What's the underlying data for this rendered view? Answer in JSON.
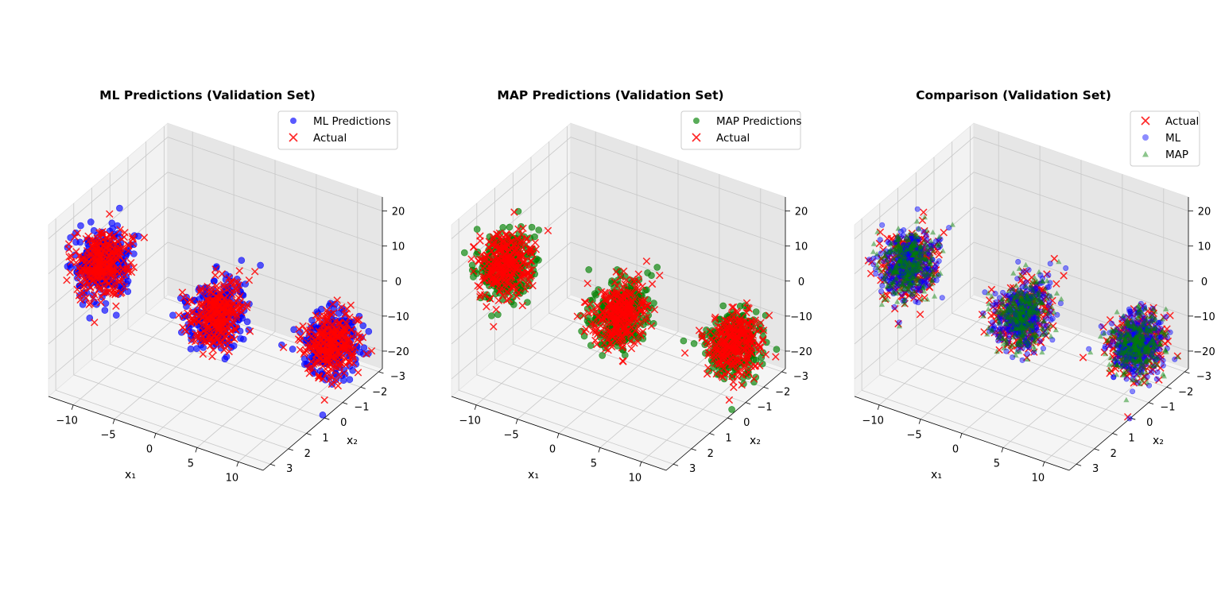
{
  "colors": {
    "ml": "#0000ff",
    "map": "#008000",
    "actual": "#ff0000",
    "pane_left": "#f2f2f2",
    "pane_right": "#e6e6e6",
    "pane_floor": "#f5f5f5",
    "grid": "#c8c8c8"
  },
  "chart_data": [
    {
      "type": "scatter",
      "projection": "3d",
      "title": "ML Predictions (Validation Set)",
      "xlabel": "x₁",
      "ylabel": "x₂",
      "zlabel": "",
      "xlim": [
        -13,
        13
      ],
      "ylim": [
        -3.2,
        3.4
      ],
      "zlim": [
        -25,
        24
      ],
      "xticks": [
        "−10",
        "−5",
        "0",
        "5",
        "10"
      ],
      "yticks": [
        "−3",
        "−2",
        "−1",
        "0",
        "1",
        "2",
        "3"
      ],
      "zticks": [
        "−20",
        "−10",
        "0",
        "10",
        "20"
      ],
      "grid": true,
      "legend": "top-right",
      "clusters": [
        {
          "x": -10,
          "y": 1.8,
          "z": 8,
          "sx": 1.2,
          "sy": 0.45,
          "sz": 4,
          "n": 300
        },
        {
          "x": 0,
          "y": 0,
          "z": -6,
          "sx": 1.2,
          "sy": 0.45,
          "sz": 4,
          "n": 300
        },
        {
          "x": 10,
          "y": -1.8,
          "z": -14,
          "sx": 1.2,
          "sy": 0.45,
          "sz": 4,
          "n": 300
        }
      ],
      "series": [
        {
          "name": "ML Predictions",
          "marker": "circle",
          "color": "#0000ff",
          "alpha": 0.65,
          "noise": 1.25
        },
        {
          "name": "Actual",
          "marker": "x",
          "color": "#ff0000",
          "alpha": 0.85,
          "noise": 1.0
        }
      ]
    },
    {
      "type": "scatter",
      "projection": "3d",
      "title": "MAP Predictions (Validation Set)",
      "xlabel": "x₁",
      "ylabel": "x₂",
      "zlabel": "",
      "xlim": [
        -13,
        13
      ],
      "ylim": [
        -3.2,
        3.4
      ],
      "zlim": [
        -25,
        24
      ],
      "xticks": [
        "−10",
        "−5",
        "0",
        "5",
        "10"
      ],
      "yticks": [
        "−3",
        "−2",
        "−1",
        "0",
        "1",
        "2",
        "3"
      ],
      "zticks": [
        "−20",
        "−10",
        "0",
        "10",
        "20"
      ],
      "grid": true,
      "legend": "top-right",
      "clusters": [
        {
          "x": -10,
          "y": 1.8,
          "z": 8,
          "sx": 1.2,
          "sy": 0.45,
          "sz": 4,
          "n": 300
        },
        {
          "x": 0,
          "y": 0,
          "z": -6,
          "sx": 1.2,
          "sy": 0.45,
          "sz": 4,
          "n": 300
        },
        {
          "x": 10,
          "y": -1.8,
          "z": -14,
          "sx": 1.2,
          "sy": 0.45,
          "sz": 4,
          "n": 300
        }
      ],
      "series": [
        {
          "name": "MAP Predictions",
          "marker": "circle",
          "color": "#008000",
          "alpha": 0.65,
          "noise": 1.25
        },
        {
          "name": "Actual",
          "marker": "x",
          "color": "#ff0000",
          "alpha": 0.85,
          "noise": 1.0
        }
      ]
    },
    {
      "type": "scatter",
      "projection": "3d",
      "title": "Comparison (Validation Set)",
      "xlabel": "x₁",
      "ylabel": "x₂",
      "zlabel": "",
      "xlim": [
        -13,
        13
      ],
      "ylim": [
        -3.2,
        3.4
      ],
      "zlim": [
        -25,
        24
      ],
      "xticks": [
        "−10",
        "−5",
        "0",
        "5",
        "10"
      ],
      "yticks": [
        "−3",
        "−2",
        "−1",
        "0",
        "1",
        "2",
        "3"
      ],
      "zticks": [
        "−20",
        "−10",
        "0",
        "10",
        "20"
      ],
      "grid": true,
      "legend": "top-right",
      "clusters": [
        {
          "x": -10,
          "y": 1.8,
          "z": 8,
          "sx": 1.2,
          "sy": 0.45,
          "sz": 4,
          "n": 300
        },
        {
          "x": 0,
          "y": 0,
          "z": -6,
          "sx": 1.2,
          "sy": 0.45,
          "sz": 4,
          "n": 300
        },
        {
          "x": 10,
          "y": -1.8,
          "z": -14,
          "sx": 1.2,
          "sy": 0.45,
          "sz": 4,
          "n": 300
        }
      ],
      "series": [
        {
          "name": "Actual",
          "marker": "x",
          "color": "#ff0000",
          "alpha": 0.85,
          "noise": 1.0
        },
        {
          "name": "ML",
          "marker": "circle",
          "color": "#0000ff",
          "alpha": 0.45,
          "noise": 1.25
        },
        {
          "name": "MAP",
          "marker": "triangle",
          "color": "#008000",
          "alpha": 0.45,
          "noise": 1.25
        }
      ]
    }
  ]
}
